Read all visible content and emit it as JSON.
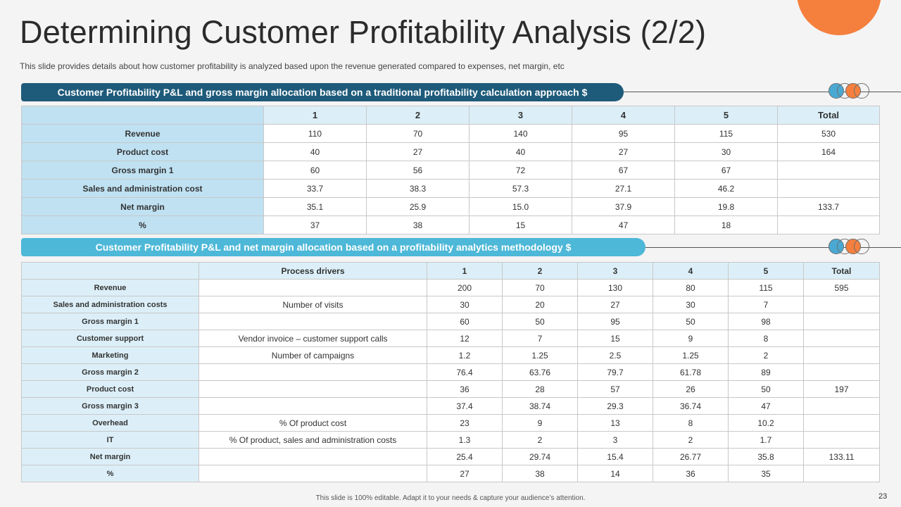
{
  "title": "Determining Customer Profitability Analysis (2/2)",
  "subtitle": "This slide provides  details about how customer profitability is analyzed based upon the revenue  generated compared to expenses, net margin, etc",
  "colors": {
    "dark_blue": "#1e5a7a",
    "light_blue": "#4db8d8",
    "orange": "#f5803e"
  },
  "section1": {
    "heading": "Customer Profitability P&L and gross margin allocation based on a  traditional profitability calculation approach $",
    "columns": [
      "1",
      "2",
      "3",
      "4",
      "5",
      "Total"
    ],
    "rows": [
      {
        "label": "Revenue",
        "values": [
          "110",
          "70",
          "140",
          "95",
          "115",
          "530"
        ]
      },
      {
        "label": "Product cost",
        "values": [
          "40",
          "27",
          "40",
          "27",
          "30",
          "164"
        ]
      },
      {
        "label": "Gross margin 1",
        "values": [
          "60",
          "56",
          "72",
          "67",
          "67",
          ""
        ]
      },
      {
        "label": "Sales and administration  cost",
        "values": [
          "33.7",
          "38.3",
          "57.3",
          "27.1",
          "46.2",
          ""
        ]
      },
      {
        "label": "Net margin",
        "values": [
          "35.1",
          "25.9",
          "15.0",
          "37.9",
          "19.8",
          "133.7"
        ]
      },
      {
        "label": "%",
        "values": [
          "37",
          "38",
          "15",
          "47",
          "18",
          ""
        ]
      }
    ]
  },
  "section2": {
    "heading": "Customer Profitability P&L and net margin allocation based on a profitability analytics methodology $",
    "driver_header": "Process drivers",
    "columns": [
      "1",
      "2",
      "3",
      "4",
      "5",
      "Total"
    ],
    "rows": [
      {
        "label": "Revenue",
        "driver": "",
        "values": [
          "200",
          "70",
          "130",
          "80",
          "115",
          "595"
        ]
      },
      {
        "label": "Sales and administration costs",
        "driver": "Number of visits",
        "values": [
          "30",
          "20",
          "27",
          "30",
          "7",
          ""
        ]
      },
      {
        "label": "Gross margin 1",
        "driver": "",
        "values": [
          "60",
          "50",
          "95",
          "50",
          "98",
          ""
        ]
      },
      {
        "label": "Customer support",
        "driver": "Vendor invoice – customer support calls",
        "values": [
          "12",
          "7",
          "15",
          "9",
          "8",
          ""
        ]
      },
      {
        "label": "Marketing",
        "driver": "Number of campaigns",
        "values": [
          "1.2",
          "1.25",
          "2.5",
          "1.25",
          "2",
          ""
        ]
      },
      {
        "label": "Gross margin 2",
        "driver": "",
        "values": [
          "76.4",
          "63.76",
          "79.7",
          "61.78",
          "89",
          ""
        ]
      },
      {
        "label": "Product cost",
        "driver": "",
        "values": [
          "36",
          "28",
          "57",
          "26",
          "50",
          "197"
        ]
      },
      {
        "label": "Gross margin 3",
        "driver": "",
        "values": [
          "37.4",
          "38.74",
          "29.3",
          "36.74",
          "47",
          ""
        ]
      },
      {
        "label": "Overhead",
        "driver": "% Of product cost",
        "values": [
          "23",
          "9",
          "13",
          "8",
          "10.2",
          ""
        ]
      },
      {
        "label": "IT",
        "driver": "% Of product, sales and administration costs",
        "values": [
          "1.3",
          "2",
          "3",
          "2",
          "1.7",
          ""
        ]
      },
      {
        "label": "Net margin",
        "driver": "",
        "values": [
          "25.4",
          "29.74",
          "15.4",
          "26.77",
          "35.8",
          "133.11"
        ]
      },
      {
        "label": "%",
        "driver": "",
        "values": [
          "27",
          "38",
          "14",
          "36",
          "35",
          ""
        ]
      }
    ]
  },
  "footer": "This slide is 100% editable.  Adapt it to your needs & capture your audience’s attention.",
  "page_number": "23"
}
